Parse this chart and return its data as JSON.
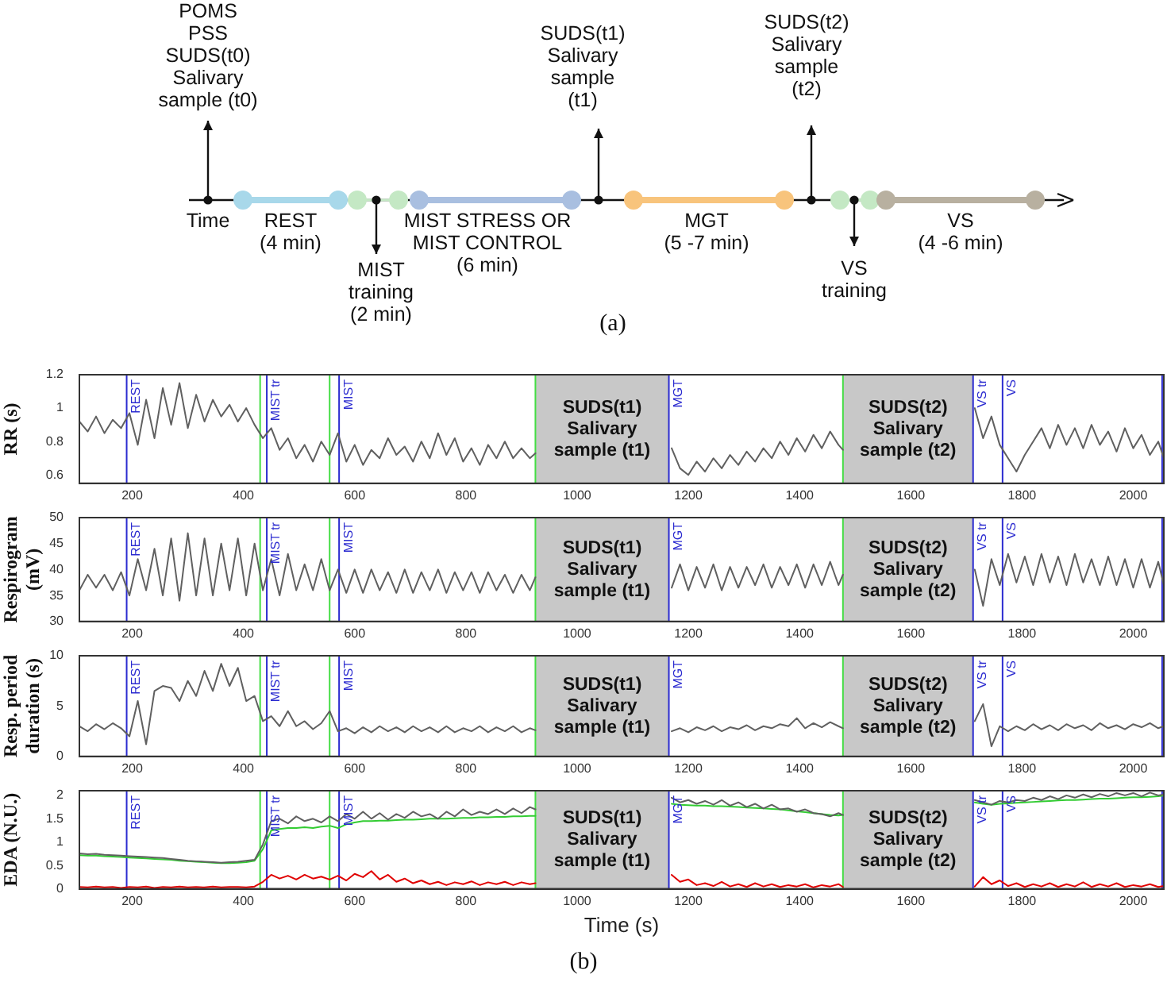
{
  "chart_data": [
    {
      "type": "other",
      "annotations": [
        "POMS\nPSS\nSUDS(t0)\nSalivary\nsample (t0)",
        "Time",
        "REST\n(4 min)",
        "MIST\ntraining\n(2 min)",
        "MIST STRESS OR\nMIST CONTROL\n(6 min)",
        "SUDS(t1)\nSalivary\nsample\n(t1)",
        "MGT\n(5 -7 min)",
        "SUDS(t2)\nSalivary\nsample\n(t2)",
        "VS\ntraining",
        "VS\n(4 -6 min)",
        "(a)"
      ]
    },
    {
      "type": "line",
      "ylabel": "RR (s)",
      "xlim": [
        105,
        2055
      ],
      "xticks": [
        200,
        400,
        600,
        800,
        1000,
        1200,
        1400,
        1600,
        1800,
        2000
      ],
      "ylim": [
        0.55,
        1.2
      ],
      "yticks": [
        0.6,
        0.8,
        1,
        1.2
      ],
      "grid": false,
      "marker": "none",
      "x": [
        105,
        120,
        135,
        150,
        165,
        180,
        195,
        210,
        225,
        240,
        255,
        270,
        285,
        300,
        315,
        330,
        345,
        360,
        375,
        390,
        405,
        420,
        435,
        450,
        465,
        480,
        495,
        510,
        525,
        540,
        555,
        570,
        585,
        600,
        615,
        630,
        645,
        660,
        675,
        690,
        705,
        720,
        735,
        750,
        765,
        780,
        795,
        810,
        825,
        840,
        855,
        870,
        885,
        900,
        915,
        925,
        1045,
        1170,
        1185,
        1200,
        1215,
        1230,
        1245,
        1260,
        1275,
        1290,
        1305,
        1320,
        1335,
        1350,
        1365,
        1380,
        1395,
        1410,
        1425,
        1440,
        1455,
        1470,
        1478,
        1600,
        1715,
        1730,
        1745,
        1760,
        1775,
        1790,
        1805,
        1820,
        1835,
        1850,
        1865,
        1880,
        1895,
        1910,
        1925,
        1940,
        1955,
        1970,
        1985,
        2000,
        2015,
        2030,
        2045,
        2055
      ],
      "series": [
        {
          "color": "#606060",
          "values": [
            0.92,
            0.86,
            0.95,
            0.85,
            0.93,
            0.88,
            0.97,
            0.78,
            1.05,
            0.82,
            1.12,
            0.9,
            1.15,
            0.88,
            1.08,
            0.92,
            1.05,
            0.95,
            1.02,
            0.92,
            1.0,
            0.9,
            0.82,
            0.88,
            0.75,
            0.82,
            0.7,
            0.78,
            0.68,
            0.8,
            0.72,
            0.85,
            0.68,
            0.78,
            0.66,
            0.75,
            0.7,
            0.82,
            0.72,
            0.77,
            0.68,
            0.8,
            0.7,
            0.85,
            0.72,
            0.82,
            0.68,
            0.76,
            0.66,
            0.78,
            0.7,
            0.8,
            0.7,
            0.76,
            0.7,
            0.73,
            null,
            0.76,
            0.64,
            0.6,
            0.68,
            0.62,
            0.7,
            0.64,
            0.72,
            0.66,
            0.74,
            0.68,
            0.76,
            0.7,
            0.8,
            0.72,
            0.82,
            0.74,
            0.84,
            0.76,
            0.86,
            0.78,
            0.75,
            null,
            1.0,
            0.82,
            0.95,
            0.78,
            0.7,
            0.62,
            0.72,
            0.8,
            0.88,
            0.76,
            0.9,
            0.78,
            0.88,
            0.76,
            0.9,
            0.78,
            0.86,
            0.74,
            0.88,
            0.76,
            0.84,
            0.72,
            0.8,
            0.7
          ]
        }
      ],
      "ref_lines": [
        {
          "axis": "x",
          "value": 190,
          "label": "REST",
          "color": "#2b2bd0"
        },
        {
          "axis": "x",
          "value": 430,
          "color": "#44dd44"
        },
        {
          "axis": "x",
          "value": 442,
          "label": "MIST tr",
          "color": "#2b2bd0"
        },
        {
          "axis": "x",
          "value": 555,
          "color": "#44dd44"
        },
        {
          "axis": "x",
          "value": 572,
          "label": "MIST",
          "color": "#2b2bd0"
        },
        {
          "axis": "x",
          "value": 925,
          "color": "#44dd44"
        },
        {
          "axis": "x",
          "value": 1165,
          "label": "MGT",
          "color": "#2b2bd0"
        },
        {
          "axis": "x",
          "value": 1478,
          "color": "#44dd44"
        },
        {
          "axis": "x",
          "value": 1712,
          "label": "VS tr",
          "color": "#2b2bd0"
        },
        {
          "axis": "x",
          "value": 1765,
          "label": "VS",
          "color": "#2b2bd0"
        },
        {
          "axis": "x",
          "value": 2052,
          "color": "#2b2bd0"
        }
      ],
      "bands": [
        {
          "axis": "x",
          "from": 925,
          "to": 1165,
          "label": "SUDS(t1) Salivary sample (t1)",
          "color": "#c8c8c8"
        },
        {
          "axis": "x",
          "from": 1478,
          "to": 1712,
          "label": "SUDS(t2) Salivary sample (t2)",
          "color": "#c8c8c8"
        }
      ]
    },
    {
      "type": "line",
      "ylabel": "Respirogram (mV)",
      "xlim": [
        105,
        2055
      ],
      "xticks": [
        200,
        400,
        600,
        800,
        1000,
        1200,
        1400,
        1600,
        1800,
        2000
      ],
      "ylim": [
        30,
        50
      ],
      "yticks": [
        30,
        35,
        40,
        45,
        50
      ],
      "grid": false,
      "marker": "none",
      "x": [
        105,
        120,
        135,
        150,
        165,
        180,
        195,
        210,
        225,
        240,
        255,
        270,
        285,
        300,
        315,
        330,
        345,
        360,
        375,
        390,
        405,
        420,
        435,
        450,
        465,
        480,
        495,
        510,
        525,
        540,
        555,
        570,
        585,
        600,
        615,
        630,
        645,
        660,
        675,
        690,
        705,
        720,
        735,
        750,
        765,
        780,
        795,
        810,
        825,
        840,
        855,
        870,
        885,
        900,
        915,
        925,
        1045,
        1170,
        1185,
        1200,
        1215,
        1230,
        1245,
        1260,
        1275,
        1290,
        1305,
        1320,
        1335,
        1350,
        1365,
        1380,
        1395,
        1410,
        1425,
        1440,
        1455,
        1470,
        1478,
        1600,
        1715,
        1730,
        1745,
        1760,
        1775,
        1790,
        1805,
        1820,
        1835,
        1850,
        1865,
        1880,
        1895,
        1910,
        1925,
        1940,
        1955,
        1970,
        1985,
        2000,
        2015,
        2030,
        2045,
        2055
      ],
      "series": [
        {
          "color": "#606060",
          "values": [
            36,
            39,
            36.5,
            39,
            36,
            39.5,
            35,
            42,
            36,
            44,
            35,
            46,
            34,
            47,
            35,
            46,
            35,
            45,
            36,
            46,
            35,
            45,
            36,
            42,
            35,
            43,
            36,
            41,
            36,
            42,
            36,
            40,
            35.5,
            40,
            35.5,
            40,
            36,
            39.5,
            35.5,
            40,
            35.5,
            39.5,
            36,
            40,
            35.5,
            39.5,
            36,
            39.5,
            35.5,
            39.5,
            36,
            39,
            35.5,
            39,
            36,
            38.5,
            null,
            36.5,
            41,
            36,
            40.5,
            36.5,
            41,
            36,
            40.5,
            36.5,
            40.5,
            37,
            41,
            36.5,
            40.5,
            37,
            41,
            36.5,
            41,
            37,
            41.5,
            37,
            39,
            null,
            40,
            33,
            42,
            37,
            43,
            37.5,
            42.5,
            37,
            43,
            37.5,
            42.5,
            37,
            43,
            37.5,
            42,
            37,
            42.5,
            37,
            42,
            36.5,
            42,
            36.5,
            41.5,
            37
          ]
        }
      ],
      "ref_lines": [
        {
          "axis": "x",
          "value": 190,
          "label": "REST",
          "color": "#2b2bd0"
        },
        {
          "axis": "x",
          "value": 430,
          "color": "#44dd44"
        },
        {
          "axis": "x",
          "value": 442,
          "label": "MIST tr",
          "color": "#2b2bd0"
        },
        {
          "axis": "x",
          "value": 555,
          "color": "#44dd44"
        },
        {
          "axis": "x",
          "value": 572,
          "label": "MIST",
          "color": "#2b2bd0"
        },
        {
          "axis": "x",
          "value": 925,
          "color": "#44dd44"
        },
        {
          "axis": "x",
          "value": 1165,
          "label": "MGT",
          "color": "#2b2bd0"
        },
        {
          "axis": "x",
          "value": 1478,
          "color": "#44dd44"
        },
        {
          "axis": "x",
          "value": 1712,
          "label": "VS tr",
          "color": "#2b2bd0"
        },
        {
          "axis": "x",
          "value": 1765,
          "label": "VS",
          "color": "#2b2bd0"
        },
        {
          "axis": "x",
          "value": 2052,
          "color": "#2b2bd0"
        }
      ],
      "bands": [
        {
          "axis": "x",
          "from": 925,
          "to": 1165,
          "label": "SUDS(t1) Salivary sample (t1)",
          "color": "#c8c8c8"
        },
        {
          "axis": "x",
          "from": 1478,
          "to": 1712,
          "label": "SUDS(t2) Salivary sample (t2)",
          "color": "#c8c8c8"
        }
      ]
    },
    {
      "type": "line",
      "ylabel": "Resp. period duration (s)",
      "xlim": [
        105,
        2055
      ],
      "xticks": [
        200,
        400,
        600,
        800,
        1000,
        1200,
        1400,
        1600,
        1800,
        2000
      ],
      "ylim": [
        0,
        10
      ],
      "yticks": [
        0,
        5,
        10
      ],
      "grid": false,
      "marker": "none",
      "x": [
        105,
        120,
        135,
        150,
        165,
        180,
        195,
        210,
        225,
        240,
        255,
        270,
        285,
        300,
        315,
        330,
        345,
        360,
        375,
        390,
        405,
        420,
        435,
        450,
        465,
        480,
        495,
        510,
        525,
        540,
        555,
        570,
        585,
        600,
        615,
        630,
        645,
        660,
        675,
        690,
        705,
        720,
        735,
        750,
        765,
        780,
        795,
        810,
        825,
        840,
        855,
        870,
        885,
        900,
        915,
        925,
        1045,
        1170,
        1185,
        1200,
        1215,
        1230,
        1245,
        1260,
        1275,
        1290,
        1305,
        1320,
        1335,
        1350,
        1365,
        1380,
        1395,
        1410,
        1425,
        1440,
        1455,
        1470,
        1478,
        1600,
        1715,
        1730,
        1745,
        1760,
        1775,
        1790,
        1805,
        1820,
        1835,
        1850,
        1865,
        1880,
        1895,
        1910,
        1925,
        1940,
        1955,
        1970,
        1985,
        2000,
        2015,
        2030,
        2045,
        2055
      ],
      "series": [
        {
          "color": "#606060",
          "values": [
            3,
            2.5,
            3.2,
            2.7,
            3.3,
            2.8,
            2,
            5.5,
            1.2,
            6.5,
            7,
            6.8,
            5.5,
            7.5,
            6,
            8.5,
            6.5,
            9.2,
            7,
            8.8,
            5.5,
            6,
            3.5,
            4,
            3,
            4.5,
            3,
            3.5,
            2.7,
            3.3,
            4.5,
            2.5,
            2.8,
            2.3,
            2.9,
            2.4,
            3,
            2.5,
            2.9,
            2.4,
            3,
            2.5,
            2.9,
            2.4,
            3,
            2.4,
            2.8,
            2.5,
            3,
            2.4,
            2.9,
            2.5,
            3,
            2.4,
            2.8,
            2.6,
            null,
            2.5,
            2.8,
            2.4,
            2.9,
            2.6,
            3,
            2.5,
            2.9,
            2.7,
            3.1,
            2.6,
            3,
            2.8,
            3.2,
            3,
            3.8,
            2.8,
            3.3,
            2.9,
            3.4,
            3,
            2.8,
            null,
            3.5,
            5.2,
            1,
            3,
            2.5,
            3,
            2.6,
            3.2,
            2.7,
            3.1,
            2.6,
            3.2,
            2.8,
            3.1,
            2.6,
            3.3,
            2.8,
            3.1,
            2.7,
            3.2,
            2.9,
            3.3,
            2.8,
            3
          ]
        }
      ],
      "ref_lines": [
        {
          "axis": "x",
          "value": 190,
          "label": "REST",
          "color": "#2b2bd0"
        },
        {
          "axis": "x",
          "value": 430,
          "color": "#44dd44"
        },
        {
          "axis": "x",
          "value": 442,
          "label": "MIST tr",
          "color": "#2b2bd0"
        },
        {
          "axis": "x",
          "value": 555,
          "color": "#44dd44"
        },
        {
          "axis": "x",
          "value": 572,
          "label": "MIST",
          "color": "#2b2bd0"
        },
        {
          "axis": "x",
          "value": 925,
          "color": "#44dd44"
        },
        {
          "axis": "x",
          "value": 1165,
          "label": "MGT",
          "color": "#2b2bd0"
        },
        {
          "axis": "x",
          "value": 1478,
          "color": "#44dd44"
        },
        {
          "axis": "x",
          "value": 1712,
          "label": "VS tr",
          "color": "#2b2bd0"
        },
        {
          "axis": "x",
          "value": 1765,
          "label": "VS",
          "color": "#2b2bd0"
        },
        {
          "axis": "x",
          "value": 2052,
          "color": "#2b2bd0"
        }
      ],
      "bands": [
        {
          "axis": "x",
          "from": 925,
          "to": 1165,
          "label": "SUDS(t1) Salivary sample (t1)",
          "color": "#c8c8c8"
        },
        {
          "axis": "x",
          "from": 1478,
          "to": 1712,
          "label": "SUDS(t2) Salivary sample (t2)",
          "color": "#c8c8c8"
        }
      ]
    },
    {
      "type": "line",
      "ylabel": "EDA (N.U.)",
      "xlabel": "Time (s)",
      "xlim": [
        105,
        2055
      ],
      "xticks": [
        200,
        400,
        600,
        800,
        1000,
        1200,
        1400,
        1600,
        1800,
        2000
      ],
      "ylim": [
        0,
        2.1
      ],
      "yticks": [
        0,
        0.5,
        1,
        1.5,
        2
      ],
      "grid": false,
      "marker": "none",
      "annotations": [
        "(b)"
      ],
      "x": [
        105,
        120,
        135,
        150,
        165,
        180,
        195,
        210,
        225,
        240,
        255,
        270,
        285,
        300,
        315,
        330,
        345,
        360,
        375,
        390,
        405,
        420,
        435,
        450,
        465,
        480,
        495,
        510,
        525,
        540,
        555,
        570,
        585,
        600,
        615,
        630,
        645,
        660,
        675,
        690,
        705,
        720,
        735,
        750,
        765,
        780,
        795,
        810,
        825,
        840,
        855,
        870,
        885,
        900,
        915,
        925,
        1045,
        1170,
        1185,
        1200,
        1215,
        1230,
        1245,
        1260,
        1275,
        1290,
        1305,
        1320,
        1335,
        1350,
        1365,
        1380,
        1395,
        1410,
        1425,
        1440,
        1455,
        1470,
        1478,
        1600,
        1715,
        1730,
        1745,
        1760,
        1775,
        1790,
        1805,
        1820,
        1835,
        1850,
        1865,
        1880,
        1895,
        1910,
        1925,
        1940,
        1955,
        1970,
        1985,
        2000,
        2015,
        2030,
        2045,
        2055
      ],
      "series": [
        {
          "color": "#606060",
          "values": [
            0.76,
            0.74,
            0.75,
            0.73,
            0.72,
            0.71,
            0.7,
            0.69,
            0.68,
            0.67,
            0.66,
            0.64,
            0.62,
            0.6,
            0.59,
            0.58,
            0.57,
            0.56,
            0.57,
            0.58,
            0.6,
            0.62,
            0.95,
            1.45,
            1.5,
            1.4,
            1.55,
            1.45,
            1.5,
            1.42,
            1.55,
            1.45,
            1.6,
            1.5,
            1.65,
            1.5,
            1.62,
            1.48,
            1.6,
            1.52,
            1.65,
            1.55,
            1.6,
            1.5,
            1.65,
            1.55,
            1.7,
            1.58,
            1.65,
            1.6,
            1.7,
            1.6,
            1.72,
            1.62,
            1.75,
            1.7,
            null,
            1.95,
            1.85,
            1.9,
            1.82,
            1.88,
            1.8,
            1.9,
            1.78,
            1.85,
            1.75,
            1.82,
            1.72,
            1.8,
            1.7,
            1.72,
            1.65,
            1.7,
            1.62,
            1.6,
            1.55,
            1.62,
            1.58,
            null,
            1.9,
            1.85,
            1.8,
            1.88,
            1.85,
            1.9,
            1.88,
            1.95,
            1.9,
            1.98,
            1.92,
            2,
            1.95,
            2.02,
            1.96,
            2.03,
            1.98,
            2.05,
            2,
            2.05,
            1.98,
            2.06,
            2,
            2.02
          ]
        },
        {
          "color": "#33cc33",
          "values": [
            0.72,
            0.71,
            0.71,
            0.7,
            0.69,
            0.68,
            0.67,
            0.66,
            0.65,
            0.64,
            0.63,
            0.62,
            0.6,
            0.59,
            0.58,
            0.57,
            0.56,
            0.55,
            0.55,
            0.56,
            0.57,
            0.6,
            0.85,
            1.25,
            1.28,
            1.3,
            1.3,
            1.32,
            1.3,
            1.33,
            1.35,
            1.3,
            1.38,
            1.42,
            1.45,
            1.45,
            1.46,
            1.46,
            1.47,
            1.48,
            1.48,
            1.49,
            1.5,
            1.5,
            1.5,
            1.51,
            1.52,
            1.52,
            1.53,
            1.53,
            1.54,
            1.54,
            1.55,
            1.55,
            1.56,
            1.56,
            null,
            1.82,
            1.8,
            1.79,
            1.78,
            1.78,
            1.77,
            1.77,
            1.76,
            1.75,
            1.74,
            1.73,
            1.72,
            1.71,
            1.7,
            1.68,
            1.66,
            1.64,
            1.62,
            1.6,
            1.58,
            1.57,
            1.58,
            null,
            1.85,
            1.82,
            1.8,
            1.82,
            1.83,
            1.84,
            1.85,
            1.86,
            1.87,
            1.88,
            1.89,
            1.9,
            1.9,
            1.91,
            1.92,
            1.93,
            1.93,
            1.94,
            1.95,
            1.96,
            1.96,
            1.97,
            1.98,
            2
          ]
        },
        {
          "color": "#e00000",
          "values": [
            0.04,
            0.03,
            0.05,
            0.03,
            0.04,
            0.02,
            0.04,
            0.03,
            0.05,
            0.02,
            0.04,
            0.03,
            0.05,
            0.03,
            0.04,
            0.03,
            0.05,
            0.03,
            0.04,
            0.04,
            0.03,
            0.05,
            0.15,
            0.3,
            0.22,
            0.28,
            0.2,
            0.3,
            0.22,
            0.26,
            0.2,
            0.28,
            0.18,
            0.32,
            0.25,
            0.38,
            0.2,
            0.3,
            0.15,
            0.22,
            0.12,
            0.18,
            0.1,
            0.15,
            0.08,
            0.14,
            0.1,
            0.16,
            0.08,
            0.14,
            0.1,
            0.15,
            0.08,
            0.14,
            0.1,
            0.12,
            null,
            0.3,
            0.15,
            0.2,
            0.08,
            0.12,
            0.06,
            0.15,
            0.05,
            0.1,
            0.04,
            0.12,
            0.05,
            0.1,
            0.04,
            0.08,
            0.05,
            0.1,
            0.03,
            0.08,
            0.05,
            0.1,
            0.04,
            null,
            0.05,
            0.25,
            0.1,
            0.18,
            0.06,
            0.12,
            0.04,
            0.1,
            0.05,
            0.12,
            0.04,
            0.1,
            0.05,
            0.14,
            0.04,
            0.1,
            0.05,
            0.12,
            0.04,
            0.08,
            0.05,
            0.1,
            0.04,
            0.06
          ]
        }
      ],
      "ref_lines": [
        {
          "axis": "x",
          "value": 190,
          "label": "REST",
          "color": "#2b2bd0"
        },
        {
          "axis": "x",
          "value": 430,
          "color": "#44dd44"
        },
        {
          "axis": "x",
          "value": 442,
          "label": "MIST tr",
          "color": "#2b2bd0"
        },
        {
          "axis": "x",
          "value": 555,
          "color": "#44dd44"
        },
        {
          "axis": "x",
          "value": 572,
          "label": "MIST",
          "color": "#2b2bd0"
        },
        {
          "axis": "x",
          "value": 925,
          "color": "#44dd44"
        },
        {
          "axis": "x",
          "value": 1165,
          "label": "MGT",
          "color": "#2b2bd0"
        },
        {
          "axis": "x",
          "value": 1478,
          "color": "#44dd44"
        },
        {
          "axis": "x",
          "value": 1712,
          "label": "VS tr",
          "color": "#2b2bd0"
        },
        {
          "axis": "x",
          "value": 1765,
          "label": "VS",
          "color": "#2b2bd0"
        },
        {
          "axis": "x",
          "value": 2052,
          "color": "#2b2bd0"
        }
      ],
      "bands": [
        {
          "axis": "x",
          "from": 925,
          "to": 1165,
          "label": "SUDS(t1) Salivary sample (t1)",
          "color": "#c8c8c8"
        },
        {
          "axis": "x",
          "from": 1478,
          "to": 1712,
          "label": "SUDS(t2) Salivary sample (t2)",
          "color": "#c8c8c8"
        }
      ]
    }
  ]
}
